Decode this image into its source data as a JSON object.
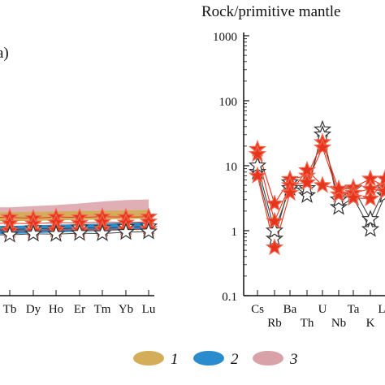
{
  "chart_data": [
    {
      "type": "line",
      "panel_label": "a)",
      "y_scale": "log",
      "x_tick_labels": [
        "Tb",
        "Dy",
        "Ho",
        "Er",
        "Tm",
        "Yb",
        "Lu"
      ],
      "fields": [
        {
          "legend": "1",
          "color": "#d4ad5a",
          "lower": [
            13.5,
            13.7,
            14.0,
            14.2,
            14.4,
            14.6,
            14.8
          ],
          "upper": [
            18.5,
            18.8,
            19.0,
            19.3,
            19.5,
            19.8,
            20.0
          ]
        },
        {
          "legend": "2",
          "color": "#2a8ccc",
          "lower": [
            8.6,
            8.9,
            9.1,
            9.4,
            9.6,
            9.9,
            10.1
          ],
          "upper": [
            11.5,
            11.8,
            12.0,
            12.2,
            12.5,
            12.8,
            13.0
          ]
        },
        {
          "legend": "3",
          "color": "#d9a1a8",
          "lower": [
            18.0,
            18.2,
            18.5,
            18.8,
            19.0,
            19.2,
            19.5
          ],
          "upper": [
            22.0,
            23.0,
            23.8,
            25.2,
            27.0,
            28.5,
            29.0
          ]
        }
      ],
      "series": [
        {
          "marker": "star-white",
          "values": [
            10.0,
            10.5,
            10.3,
            10.8,
            10.6,
            11.0,
            11.2
          ]
        },
        {
          "marker": "star-red",
          "values": [
            15.5,
            15.0,
            15.7,
            15.4,
            15.9,
            15.6,
            15.8
          ]
        },
        {
          "marker": "star-red",
          "values": [
            12.6,
            12.4,
            12.9,
            12.7,
            13.1,
            12.8,
            13.3
          ]
        },
        {
          "marker": "star-red",
          "values": [
            9.8,
            9.6,
            10.0,
            9.9,
            10.2,
            10.1,
            10.3
          ]
        },
        {
          "marker": "star-white",
          "values": [
            8.4,
            8.7,
            8.6,
            8.9,
            8.8,
            9.2,
            9.4
          ]
        }
      ]
    },
    {
      "type": "line",
      "title": "Rock/primitive mantle",
      "y_scale": "log",
      "ylim": [
        0.1,
        1000
      ],
      "y_tick_labels": [
        "1000",
        "100",
        "10",
        "1",
        "0.1"
      ],
      "x_tick_labels_top": [
        "Cs",
        "Ba",
        "U",
        "Ta",
        "L"
      ],
      "x_tick_labels_bottom": [
        "Rb",
        "Th",
        "Nb",
        "K"
      ],
      "x_categories": [
        "Cs",
        "Rb",
        "Ba",
        "Th",
        "U",
        "Nb",
        "Ta",
        "K",
        "L"
      ],
      "series": [
        {
          "color": "#444444",
          "marker": "star-white",
          "values": [
            8,
            0.75,
            5.5,
            3.5,
            36,
            2.3,
            3.2,
            1.05,
            3.5
          ]
        },
        {
          "color": "#444444",
          "marker": "star-white",
          "values": [
            10,
            1.0,
            4.5,
            4.5,
            30,
            3.0,
            4.5,
            1.5,
            4.5
          ]
        },
        {
          "color": "#e8341c",
          "marker": "star-red",
          "values": [
            18,
            2.6,
            6.2,
            7.0,
            23,
            4.2,
            4.6,
            6.3,
            4.8
          ]
        },
        {
          "color": "#e8341c",
          "marker": "star-red",
          "values": [
            15,
            1.4,
            5.0,
            5.5,
            19,
            3.6,
            3.8,
            4.4,
            4.0
          ]
        },
        {
          "color": "#e8341c",
          "marker": "star-red",
          "values": [
            7,
            0.55,
            3.8,
            8.5,
            5,
            4.4,
            3.2,
            3.1,
            6.3
          ]
        }
      ]
    }
  ],
  "legend": [
    {
      "label": "1",
      "color": "#d4ad5a"
    },
    {
      "label": "2",
      "color": "#2a8ccc"
    },
    {
      "label": "3",
      "color": "#d9a1a8"
    }
  ]
}
